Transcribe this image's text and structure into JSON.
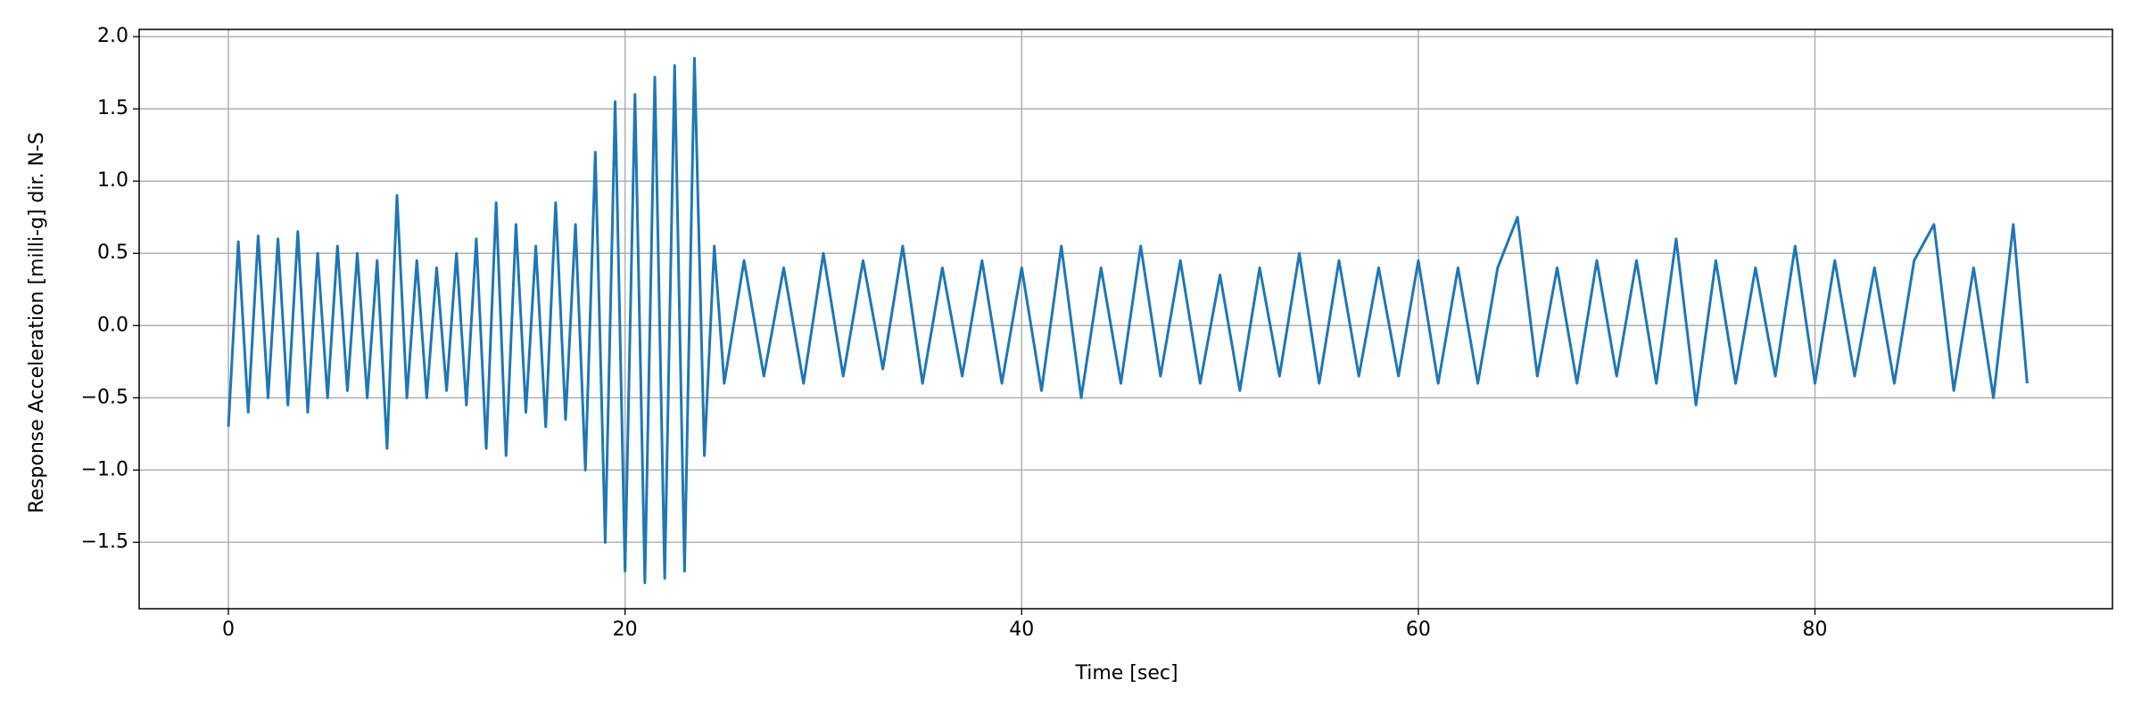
{
  "chart_data": {
    "type": "line",
    "xlabel": "Time [sec]",
    "ylabel": "Response Acceleration [milli-g] dir. N-S",
    "x": [
      0,
      0.5,
      1,
      1.5,
      2,
      2.5,
      3,
      3.5,
      4,
      4.5,
      5,
      5.5,
      6,
      6.5,
      7,
      7.5,
      8,
      8.5,
      9,
      9.5,
      10,
      10.5,
      11,
      11.5,
      12,
      12.5,
      13,
      13.5,
      14,
      14.5,
      15,
      15.5,
      16,
      16.5,
      17,
      17.5,
      18,
      18.5,
      19,
      19.5,
      20,
      20.5,
      21,
      21.5,
      22,
      22.5,
      23,
      23.5,
      24,
      24.5,
      25,
      26,
      27,
      28,
      29,
      30,
      31,
      32,
      33,
      34,
      35,
      36,
      37,
      38,
      39,
      40,
      41,
      42,
      43,
      44,
      45,
      46,
      47,
      48,
      49,
      50,
      51,
      52,
      53,
      54,
      55,
      56,
      57,
      58,
      59,
      60,
      61,
      62,
      63,
      64,
      65,
      66,
      67,
      68,
      69,
      70,
      71,
      72,
      73,
      74,
      75,
      76,
      77,
      78,
      79,
      80,
      81,
      82,
      83,
      84,
      85,
      86,
      87,
      88,
      89,
      90,
      90.7
    ],
    "series": [
      {
        "color": "#1f77b4",
        "values": [
          -0.7,
          0.58,
          -0.6,
          0.62,
          -0.5,
          0.6,
          -0.55,
          0.65,
          -0.6,
          0.5,
          -0.5,
          0.55,
          -0.45,
          0.5,
          -0.5,
          0.45,
          -0.85,
          0.9,
          -0.5,
          0.45,
          -0.5,
          0.4,
          -0.45,
          0.5,
          -0.55,
          0.6,
          -0.85,
          0.85,
          -0.9,
          0.7,
          -0.6,
          0.55,
          -0.7,
          0.85,
          -0.65,
          0.7,
          -1.0,
          1.2,
          -1.5,
          1.55,
          -1.7,
          1.6,
          -1.78,
          1.72,
          -1.75,
          1.8,
          -1.7,
          1.85,
          -0.9,
          0.55,
          -0.4,
          0.45,
          -0.35,
          0.4,
          -0.4,
          0.5,
          -0.35,
          0.45,
          -0.3,
          0.55,
          -0.4,
          0.4,
          -0.35,
          0.45,
          -0.4,
          0.4,
          -0.45,
          0.55,
          -0.5,
          0.4,
          -0.4,
          0.55,
          -0.35,
          0.45,
          -0.4,
          0.35,
          -0.45,
          0.4,
          -0.35,
          0.5,
          -0.4,
          0.45,
          -0.35,
          0.4,
          -0.35,
          0.45,
          -0.4,
          0.4,
          -0.4,
          0.4,
          0.75,
          -0.35,
          0.4,
          -0.4,
          0.45,
          -0.35,
          0.45,
          -0.4,
          0.6,
          -0.55,
          0.45,
          -0.4,
          0.4,
          -0.35,
          0.55,
          -0.4,
          0.45,
          -0.35,
          0.4,
          -0.4,
          0.45,
          0.7,
          -0.45,
          0.4,
          -0.5,
          0.7,
          -0.4
        ]
      }
    ],
    "xlim": [
      -4.5,
      95
    ],
    "ylim": [
      -1.96,
      2.05
    ],
    "xticks": [
      0,
      20,
      40,
      60,
      80
    ],
    "yticks": [
      {
        "value": -1.5,
        "label": "−1.5"
      },
      {
        "value": -1.0,
        "label": "−1.0"
      },
      {
        "value": -0.5,
        "label": "−0.5"
      },
      {
        "value": 0,
        "label": "0.0"
      },
      {
        "value": 0.5,
        "label": "0.5"
      },
      {
        "value": 1.0,
        "label": "1.0"
      },
      {
        "value": 1.5,
        "label": "1.5"
      },
      {
        "value": 2.0,
        "label": "2.0"
      }
    ],
    "grid": true
  }
}
